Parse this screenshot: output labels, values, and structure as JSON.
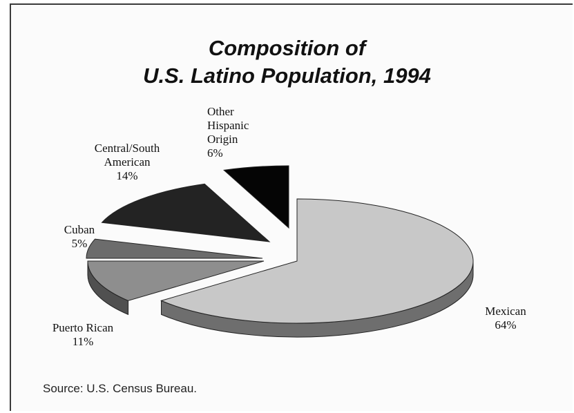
{
  "chart_data": {
    "type": "pie",
    "title_lines": [
      "Composition of",
      "U.S. Latino Population, 1994"
    ],
    "slices": [
      {
        "name": "Mexican",
        "value": 64,
        "label": "64%",
        "color": "#c8c8c8",
        "side": "#6e6e6e"
      },
      {
        "name": "Puerto Rican",
        "value": 11,
        "label": "11%",
        "color": "#8e8e8e",
        "side": "#505050"
      },
      {
        "name": "Cuban",
        "value": 5,
        "label": "5%",
        "color": "#6c6c6c",
        "side": "#3c3c3c"
      },
      {
        "name": "Central/South American",
        "value": 14,
        "label": "14%",
        "color": "#232323",
        "side": "#101010"
      },
      {
        "name": "Other Hispanic Origin",
        "value": 6,
        "label": "6%",
        "color": "#050505",
        "side": "#000000"
      }
    ],
    "source": "Source: U.S. Census Bureau."
  },
  "labels": {
    "mexican": [
      "Mexican",
      "64%"
    ],
    "puerto_rican": [
      "Puerto Rican",
      "11%"
    ],
    "cuban": [
      "Cuban",
      "5%"
    ],
    "central_south": [
      "Central/South",
      "American",
      "14%"
    ],
    "other": [
      "Other",
      "Hispanic",
      "Origin",
      "6%"
    ]
  }
}
